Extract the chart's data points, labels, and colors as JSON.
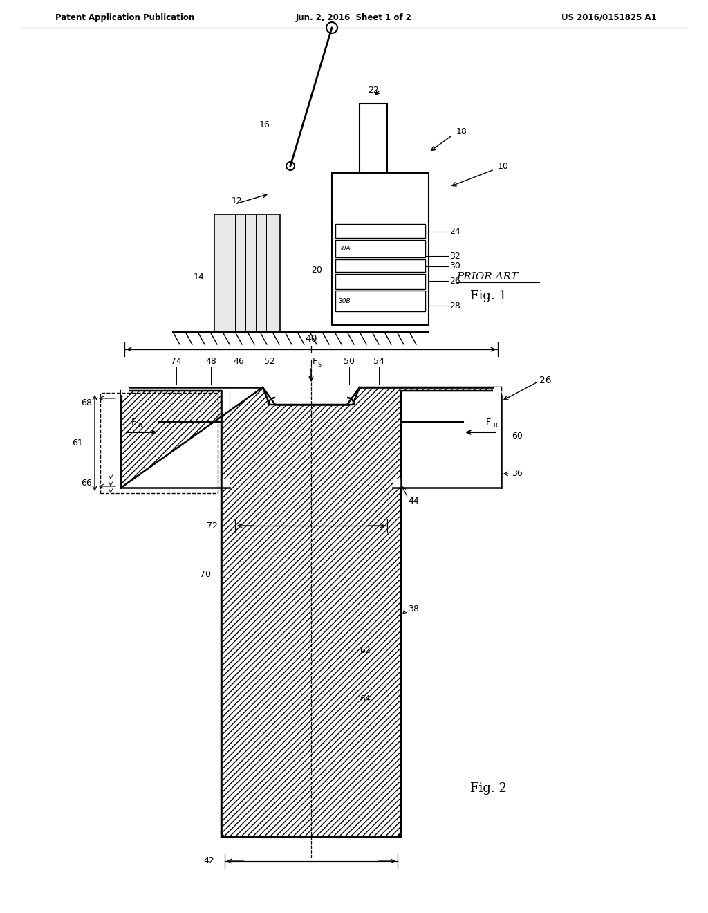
{
  "header_left": "Patent Application Publication",
  "header_mid": "Jun. 2, 2016  Sheet 1 of 2",
  "header_right": "US 2016/0151825 A1",
  "fig1_label": "Fig. 1",
  "fig2_label": "Fig. 2",
  "prior_art_label": "PRIOR ART",
  "bg_color": "#ffffff",
  "line_color": "#000000",
  "hatch_color": "#000000",
  "label_color": "#000000"
}
